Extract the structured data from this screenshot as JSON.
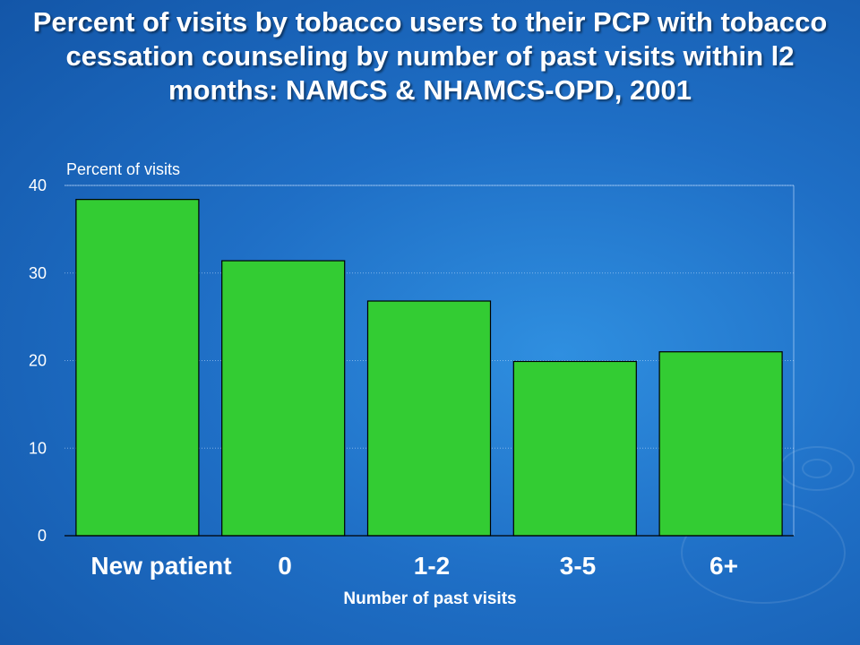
{
  "chart_data": {
    "type": "bar",
    "title": "Percent of visits by tobacco users to their PCP with tobacco cessation counseling by number of past visits within l2 months: NAMCS & NHAMCS-OPD, 2001",
    "ylabel": "Percent of visits",
    "xlabel": "Number of past visits",
    "categories": [
      "New patient",
      "0",
      "1-2",
      "3-5",
      "6+"
    ],
    "values": [
      38.4,
      31.4,
      26.8,
      19.9,
      21.0
    ],
    "ylim": [
      0,
      40
    ],
    "yticks": [
      "0",
      "10",
      "20",
      "30",
      "40"
    ],
    "grid": true,
    "bar_color": "#33cc33"
  }
}
